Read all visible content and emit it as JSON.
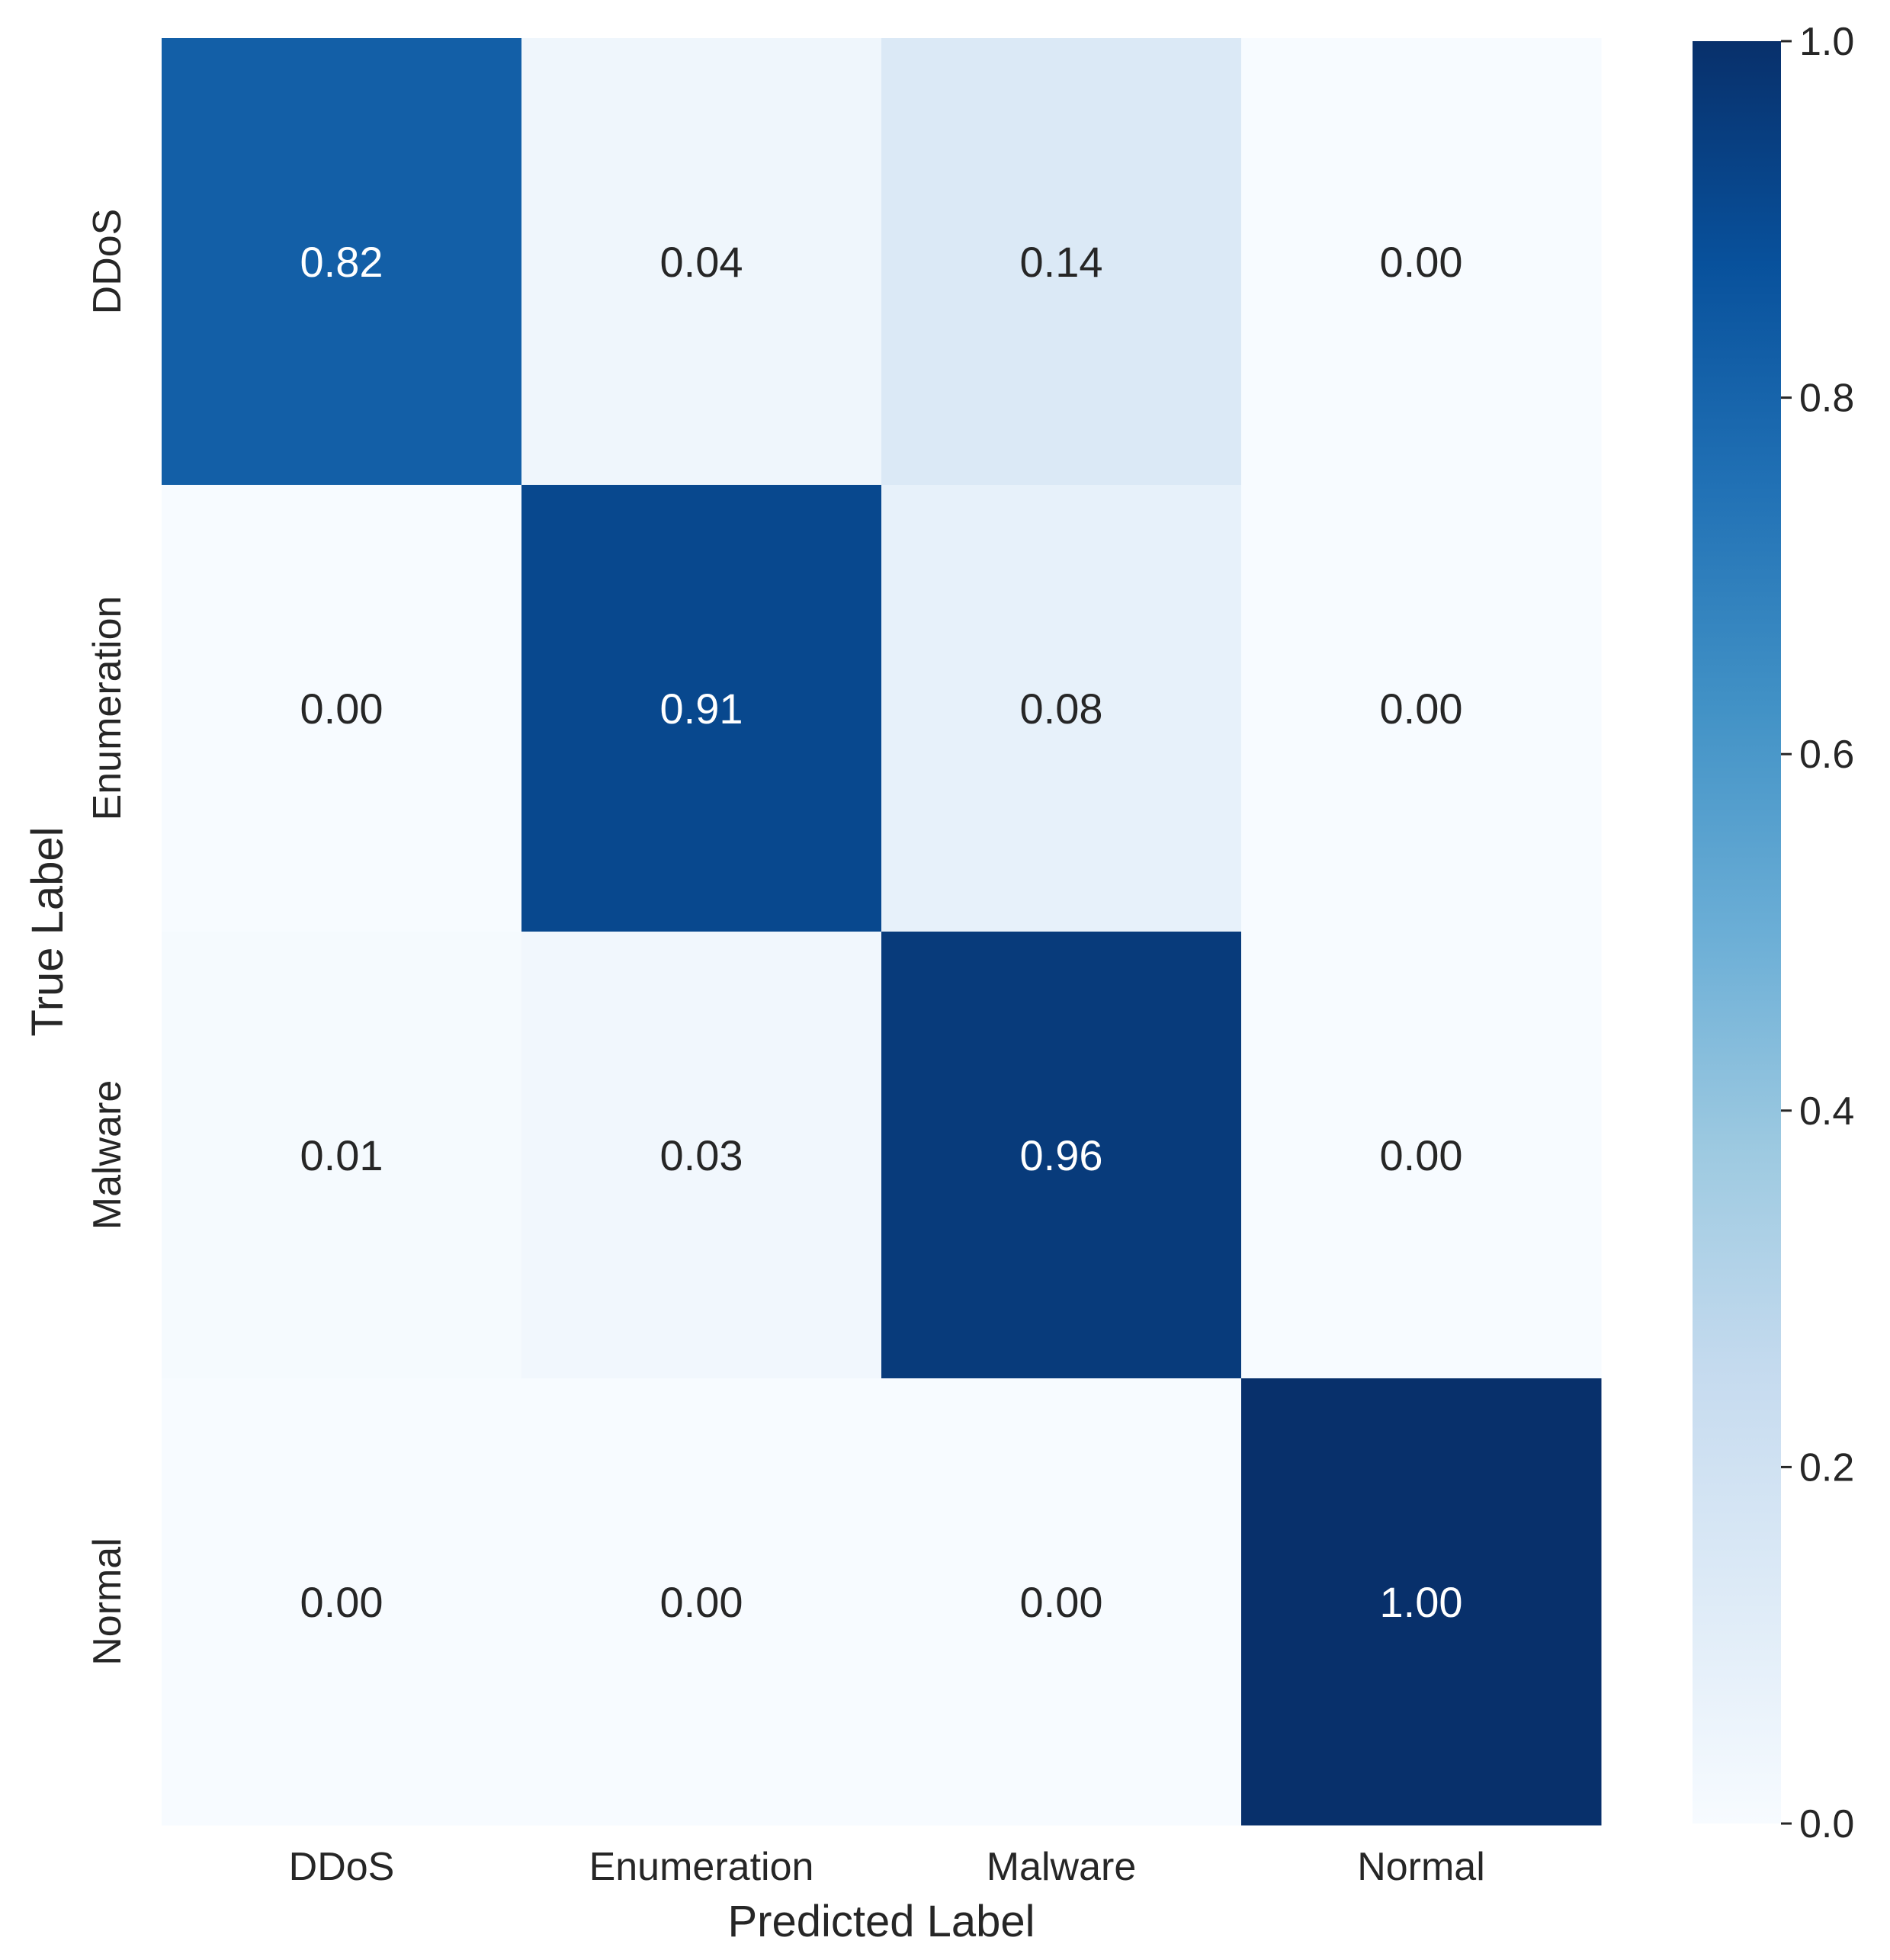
{
  "chart_data": {
    "type": "heatmap",
    "x_categories": [
      "DDoS",
      "Enumeration",
      "Malware",
      "Normal"
    ],
    "y_categories": [
      "DDoS",
      "Enumeration",
      "Malware",
      "Normal"
    ],
    "values": [
      [
        0.82,
        0.04,
        0.14,
        0.0
      ],
      [
        0.0,
        0.91,
        0.08,
        0.0
      ],
      [
        0.01,
        0.03,
        0.96,
        0.0
      ],
      [
        0.0,
        0.0,
        0.0,
        1.0
      ]
    ],
    "annotations": [
      [
        "0.82",
        "0.04",
        "0.14",
        "0.00"
      ],
      [
        "0.00",
        "0.91",
        "0.08",
        "0.00"
      ],
      [
        "0.01",
        "0.03",
        "0.96",
        "0.00"
      ],
      [
        "0.00",
        "0.00",
        "0.00",
        "1.00"
      ]
    ],
    "xlabel": "Predicted Label",
    "ylabel": "True Label",
    "colormap": "Blues",
    "colorbar": {
      "range": [
        0.0,
        1.0
      ],
      "ticks": [
        0.0,
        0.2,
        0.4,
        0.6,
        0.8,
        1.0
      ],
      "tick_labels": [
        "0.0",
        "0.2",
        "0.4",
        "0.6",
        "0.8",
        "1.0"
      ]
    },
    "grid": false
  }
}
